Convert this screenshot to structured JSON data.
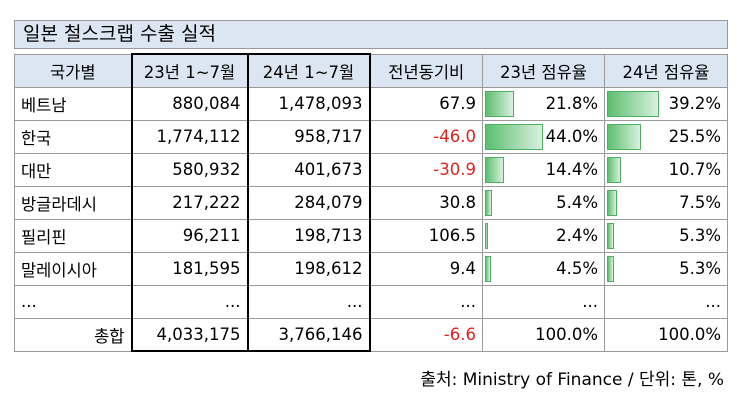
{
  "title": "일본 철스크랩 수출 실적",
  "headers": [
    "국가별",
    "23년 1~7월",
    "24년 1~7월",
    "전년동기비",
    "23년 점유율",
    "24년 점유율"
  ],
  "rows": [
    {
      "country": "베트남",
      "y23": "880,084",
      "y24": "1,478,093",
      "yoy": "67.9",
      "share23": "21.8%",
      "share24": "39.2%",
      "share23_value": 21.8,
      "share24_value": 39.2,
      "neg": false
    },
    {
      "country": "한국",
      "y23": "1,774,112",
      "y24": "958,717",
      "yoy": "-46.0",
      "share23": "44.0%",
      "share24": "25.5%",
      "share23_value": 44.0,
      "share24_value": 25.5,
      "neg": true
    },
    {
      "country": "대만",
      "y23": "580,932",
      "y24": "401,673",
      "yoy": "-30.9",
      "share23": "14.4%",
      "share24": "10.7%",
      "share23_value": 14.4,
      "share24_value": 10.7,
      "neg": true
    },
    {
      "country": "방글라데시",
      "y23": "217,222",
      "y24": "284,079",
      "yoy": "30.8",
      "share23": "5.4%",
      "share24": "7.5%",
      "share23_value": 5.4,
      "share24_value": 7.5,
      "neg": false
    },
    {
      "country": "필리핀",
      "y23": "96,211",
      "y24": "198,713",
      "yoy": "106.5",
      "share23": "2.4%",
      "share24": "5.3%",
      "share23_value": 2.4,
      "share24_value": 5.3,
      "neg": false
    },
    {
      "country": "말레이시아",
      "y23": "181,595",
      "y24": "198,612",
      "yoy": "9.4",
      "share23": "4.5%",
      "share24": "5.3%",
      "share23_value": 4.5,
      "share24_value": 5.3,
      "neg": false
    }
  ],
  "ellipsis": "...",
  "total": {
    "label": "총합",
    "y23": "4,033,175",
    "y24": "3,766,146",
    "yoy": "-6.6",
    "share23": "100.0%",
    "share24": "100.0%"
  },
  "source": "출처: Ministry of Finance / 단위: 톤, %",
  "colors": {
    "header_bg": "#dbe6f2",
    "negative": "#e0221e",
    "bar": "#5cbf6f"
  }
}
